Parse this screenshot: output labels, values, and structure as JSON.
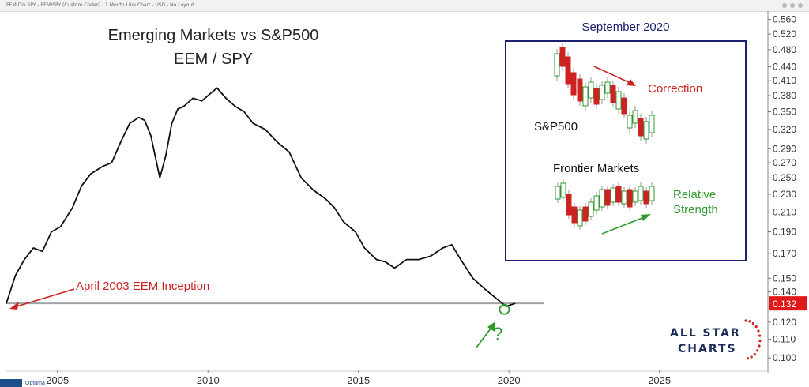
{
  "topbar": {
    "text": "EEM Div SPY - EEM/SPY (Custom Codes) - 1 Month Line Chart - USD - No Layout"
  },
  "chart_data": {
    "type": "line",
    "title": "Emerging Markets vs S&P500",
    "subtitle": "EEM / SPY",
    "x": [
      2003.3,
      2003.6,
      2003.9,
      2004.2,
      2004.5,
      2004.8,
      2005.1,
      2005.5,
      2005.8,
      2006.1,
      2006.5,
      2006.8,
      2007.1,
      2007.4,
      2007.7,
      2007.9,
      2008.1,
      2008.4,
      2008.6,
      2008.8,
      2009.0,
      2009.2,
      2009.5,
      2009.8,
      2010.1,
      2010.3,
      2010.6,
      2010.9,
      2011.2,
      2011.5,
      2011.9,
      2012.3,
      2012.7,
      2013.1,
      2013.5,
      2013.9,
      2014.2,
      2014.5,
      2014.9,
      2015.2,
      2015.6,
      2015.9,
      2016.2,
      2016.6,
      2017.0,
      2017.4,
      2017.8,
      2018.1,
      2018.4,
      2018.8,
      2019.2,
      2019.6,
      2019.9,
      2020.2
    ],
    "y": [
      0.132,
      0.152,
      0.165,
      0.175,
      0.172,
      0.19,
      0.195,
      0.215,
      0.24,
      0.255,
      0.265,
      0.27,
      0.3,
      0.33,
      0.34,
      0.335,
      0.31,
      0.25,
      0.28,
      0.33,
      0.355,
      0.36,
      0.375,
      0.37,
      0.385,
      0.395,
      0.375,
      0.36,
      0.35,
      0.33,
      0.32,
      0.3,
      0.285,
      0.25,
      0.235,
      0.225,
      0.215,
      0.2,
      0.19,
      0.175,
      0.165,
      0.163,
      0.158,
      0.165,
      0.165,
      0.168,
      0.175,
      0.178,
      0.165,
      0.15,
      0.142,
      0.135,
      0.13,
      0.132
    ],
    "xticks": [
      "2005",
      "2010",
      "2015",
      "2020",
      "2025"
    ],
    "xtick_values": [
      2005,
      2010,
      2015,
      2020,
      2025
    ],
    "xlim": [
      2003.3,
      2028.5
    ],
    "yticks": [
      "0.560",
      "0.520",
      "0.480",
      "0.440",
      "0.410",
      "0.380",
      "0.350",
      "0.320",
      "0.290",
      "0.270",
      "0.250",
      "0.230",
      "0.210",
      "0.190",
      "0.170",
      "0.150",
      "0.140",
      "0.120",
      "0.110",
      "0.100"
    ],
    "ytick_values": [
      0.56,
      0.52,
      0.48,
      0.44,
      0.41,
      0.38,
      0.35,
      0.32,
      0.29,
      0.27,
      0.25,
      0.23,
      0.21,
      0.19,
      0.17,
      0.15,
      0.14,
      0.12,
      0.11,
      0.1
    ],
    "ylim": [
      0.095,
      0.575
    ],
    "y_scale": "log",
    "last_value": "0.132",
    "last_value_color": "#e01818",
    "support_level": 0.132,
    "grid": false,
    "annotations": {
      "inception": "April 2003 EEM Inception",
      "question": "?"
    }
  },
  "inset": {
    "title": "September 2020",
    "sp_label": "S&P500",
    "correction": "Correction",
    "fm_label": "Frontier Markets",
    "relative": "Relative",
    "strength": "Strength",
    "border_color": "#1a2170",
    "down_color": "#cc2222",
    "up_color": "#2e9a2e"
  },
  "logo": {
    "line1": "ALL STAR",
    "line2": "CHARTS"
  },
  "bottom_logo": {
    "text": "Optuma"
  }
}
